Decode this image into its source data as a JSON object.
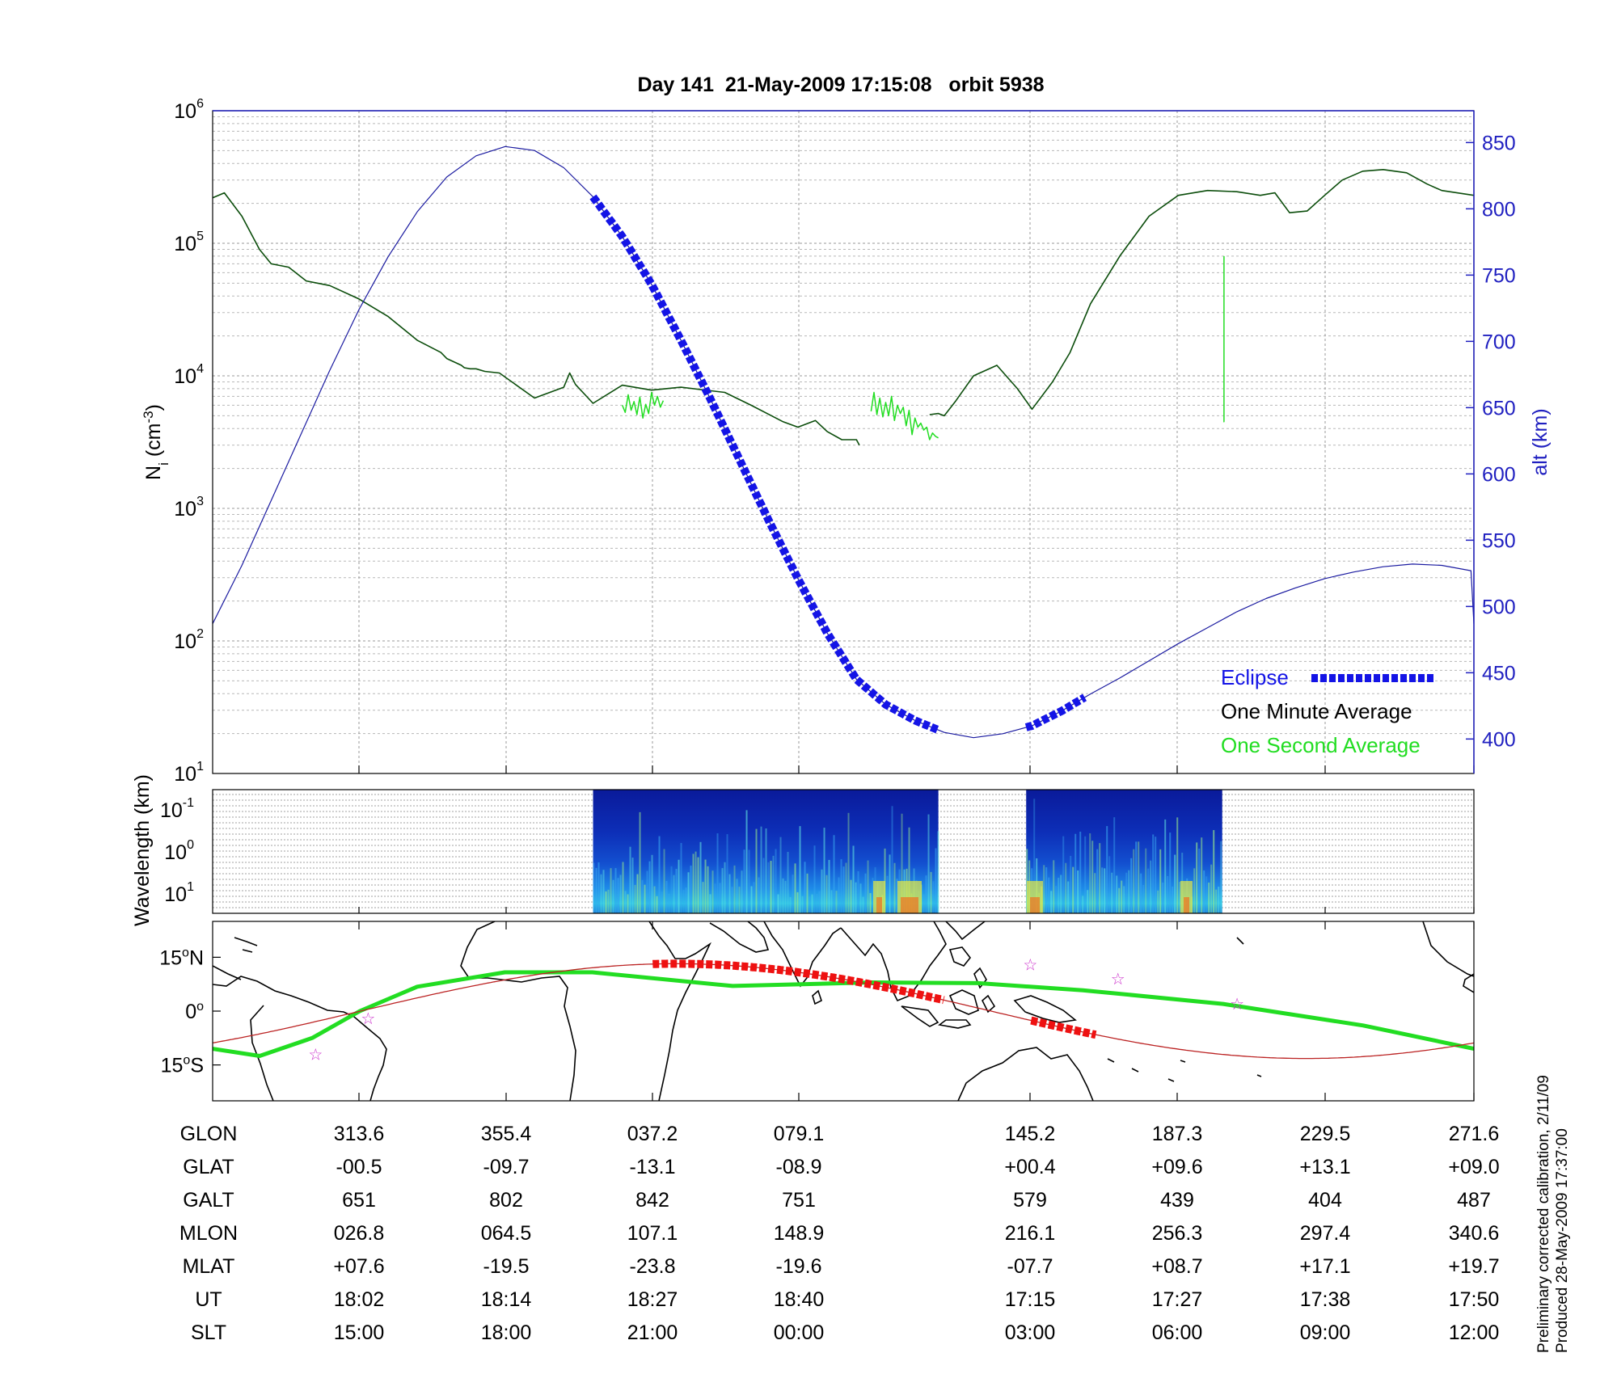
{
  "title": "Day 141  21-May-2009 17:15:08   orbit 5938",
  "colors": {
    "density_1s": "#22dd22",
    "density_1m": "#0b4d0b",
    "altitude": "#1a1aa0",
    "eclipse": "#1414e6",
    "track_eclipse": "#ee1111",
    "track_orbit": "#bb2222",
    "magnetic_equator": "#22dd22",
    "right_axis": "#2020c0",
    "star": "#cc33cc"
  },
  "chart_data": [
    {
      "type": "line",
      "ylabel": "N",
      "ylabel_sub": "i",
      "ylabel_unit_pre": " (cm",
      "ylabel_unit_sup": "-3",
      "ylabel_unit_post": ")",
      "y2label": "alt (km)",
      "yscale": "log",
      "ylim": [
        10,
        1000000
      ],
      "y2lim": [
        374,
        874
      ],
      "y_ticks": [
        {
          "base": "10",
          "exp": "1",
          "value": 10
        },
        {
          "base": "10",
          "exp": "2",
          "value": 100
        },
        {
          "base": "10",
          "exp": "3",
          "value": 1000
        },
        {
          "base": "10",
          "exp": "4",
          "value": 10000
        },
        {
          "base": "10",
          "exp": "5",
          "value": 100000
        },
        {
          "base": "10",
          "exp": "6",
          "value": 1000000
        }
      ],
      "y2_ticks": [
        "400",
        "450",
        "500",
        "550",
        "600",
        "650",
        "700",
        "750",
        "800",
        "850"
      ],
      "grid": true,
      "legend_position": "bottom-right",
      "legend": [
        {
          "label": "Eclipse",
          "color": "#1414e6"
        },
        {
          "label": "One Minute Average",
          "color": "#000000"
        },
        {
          "label": "One Second Average",
          "color": "#22dd22"
        }
      ],
      "series": [
        {
          "name": "One Minute Average",
          "axis": "left",
          "x": [
            0,
            4,
            10,
            16,
            20,
            26,
            32,
            40,
            50,
            60,
            70,
            78,
            80,
            85,
            86,
            88,
            90,
            93,
            98,
            110,
            120,
            122,
            124,
            130,
            140,
            150,
            160,
            175,
            184,
            195,
            200,
            206,
            210,
            215,
            220,
            221
          ],
          "y": [
            220000,
            240000,
            160000,
            90000,
            70000,
            66000,
            52000,
            48000,
            38000,
            28000,
            18500,
            15000,
            13500,
            12000,
            11500,
            11300,
            11300,
            10800,
            10500,
            6800,
            8200,
            10500,
            8600,
            6200,
            8500,
            7800,
            8200,
            7500,
            6000,
            4500,
            4100,
            4600,
            3800,
            3300,
            3300,
            3000
          ]
        },
        {
          "name": "One Minute Average",
          "axis": "left",
          "x": [
            245,
            248,
            250,
            254,
            260,
            268,
            275,
            280,
            287,
            293,
            300,
            310,
            320,
            330,
            340,
            350,
            358,
            363,
            368,
            374,
            380,
            386,
            393,
            400,
            408,
            415,
            420,
            431
          ],
          "y": [
            5100,
            5200,
            5000,
            6500,
            10000,
            12000,
            8000,
            5600,
            9000,
            15000,
            35000,
            80000,
            160000,
            230000,
            250000,
            245000,
            230000,
            240000,
            170000,
            175000,
            230000,
            300000,
            350000,
            360000,
            340000,
            280000,
            250000,
            230000
          ]
        },
        {
          "name": "One Second Average",
          "axis": "left",
          "x": [
            140,
            141,
            142,
            143,
            144,
            145,
            146,
            147,
            148,
            149,
            150,
            151,
            152,
            153,
            154
          ],
          "y": [
            6000,
            5300,
            7200,
            5500,
            6400,
            5100,
            6900,
            4800,
            6100,
            5200,
            7500,
            6000,
            7000,
            5800,
            6500
          ]
        },
        {
          "name": "One Second Average",
          "axis": "left",
          "x": [
            225,
            226,
            227,
            228,
            229,
            230,
            231,
            232,
            233,
            234,
            235,
            236,
            237,
            238,
            239,
            240,
            241,
            242,
            243,
            244,
            245,
            246,
            247,
            248
          ],
          "y": [
            5400,
            7500,
            5100,
            6800,
            4900,
            6300,
            5000,
            7000,
            4600,
            6000,
            5200,
            5800,
            4200,
            5500,
            3600,
            4800,
            4100,
            4400,
            3900,
            4100,
            3300,
            3700,
            3500,
            3400
          ]
        },
        {
          "name": "One Second Average",
          "axis": "left",
          "x": [
            345.6,
            345.6,
            345.7
          ],
          "y": [
            80000,
            4500,
            4500
          ]
        },
        {
          "name": "alt (km)",
          "axis": "right",
          "x": [
            0,
            10,
            20,
            30,
            40,
            50,
            60,
            70,
            80,
            90,
            100,
            110,
            120,
            130,
            140,
            150,
            160,
            170,
            180,
            190,
            200,
            210,
            220,
            230,
            240,
            250,
            260,
            270,
            280,
            290,
            300,
            310,
            320,
            330,
            340,
            350,
            360,
            370,
            380,
            390,
            400,
            410,
            420,
            430,
            431
          ],
          "y": [
            487,
            531,
            580,
            629,
            678,
            724,
            764,
            798,
            824,
            840,
            847,
            844,
            831,
            809,
            779,
            743,
            701,
            657,
            611,
            565,
            521,
            480,
            445,
            426,
            414,
            405,
            401,
            404,
            410,
            421,
            434,
            446,
            459,
            472,
            484,
            496,
            506,
            514,
            521,
            526,
            530,
            532,
            531,
            527,
            487
          ]
        }
      ],
      "eclipse_segments": [
        {
          "x_start": 130,
          "x_end": 248,
          "label": "Eclipse"
        },
        {
          "x_start": 278,
          "x_end": 298,
          "label": "Eclipse"
        }
      ]
    },
    {
      "type": "heatmap",
      "ylabel": "Wavelength (km)",
      "y_ticks": [
        {
          "base": "10",
          "exp": "-1"
        },
        {
          "base": "10",
          "exp": "0"
        },
        {
          "base": "10",
          "exp": "1"
        }
      ],
      "coverage": [
        {
          "x_start": 130,
          "x_end": 248
        },
        {
          "x_start": 278,
          "x_end": 345
        }
      ],
      "colormap": "jet"
    },
    {
      "type": "map",
      "y_ticks": [
        {
          "deg": "15",
          "hemi": "N",
          "lat": 15
        },
        {
          "deg": "0",
          "hemi": "",
          "lat": 0
        },
        {
          "deg": "15",
          "hemi": "S",
          "lat": -15
        }
      ],
      "ylim": [
        -25,
        25
      ],
      "satellite_track": {
        "lon": [
          271.6,
          313.6,
          355.4,
          37.2,
          79.1,
          121.2,
          145.2,
          187.3,
          229.5,
          271.6
        ],
        "lat": [
          9.0,
          -0.5,
          -9.7,
          -13.1,
          -8.9,
          -4.4,
          0.4,
          9.6,
          13.1,
          9.0
        ]
      },
      "magnetic_equator": {
        "lon": [
          271.6,
          285,
          300,
          313.6,
          330,
          355,
          20,
          60,
          100,
          130,
          160,
          200,
          240,
          271.6
        ],
        "lat": [
          -10.5,
          -12.5,
          -7.5,
          0.0,
          6.8,
          10.8,
          10.8,
          7.0,
          8.0,
          7.8,
          5.8,
          2.0,
          -4.0,
          -10.5
        ]
      },
      "eclipse_track": [
        {
          "lon_start": 37.2,
          "lon_end": 120.6
        },
        {
          "lon_start": 145.2,
          "lon_end": 163.8
        }
      ],
      "stars": [
        {
          "lon": 301,
          "lat": -12
        },
        {
          "lon": 316,
          "lat": -2
        },
        {
          "lon": 145,
          "lat": 13
        },
        {
          "lon": 170,
          "lat": 9
        },
        {
          "lon": 204,
          "lat": 2
        }
      ]
    }
  ],
  "table": {
    "columns": [
      "313.6",
      "355.4",
      "037.2",
      "079.1",
      "145.2",
      "187.3",
      "229.5",
      "271.6"
    ],
    "rows": [
      {
        "label": "GLON",
        "values": [
          "313.6",
          "355.4",
          "037.2",
          "079.1",
          "145.2",
          "187.3",
          "229.5",
          "271.6"
        ]
      },
      {
        "label": "GLAT",
        "values": [
          "-00.5",
          "-09.7",
          "-13.1",
          "-08.9",
          "+00.4",
          "+09.6",
          "+13.1",
          "+09.0"
        ]
      },
      {
        "label": "GALT",
        "values": [
          "651",
          "802",
          "842",
          "751",
          "579",
          "439",
          "404",
          "487"
        ]
      },
      {
        "label": "MLON",
        "values": [
          "026.8",
          "064.5",
          "107.1",
          "148.9",
          "216.1",
          "256.3",
          "297.4",
          "340.6"
        ]
      },
      {
        "label": "MLAT",
        "values": [
          "+07.6",
          "-19.5",
          "-23.8",
          "-19.6",
          "-07.7",
          "+08.7",
          "+17.1",
          "+19.7"
        ]
      },
      {
        "label": "UT",
        "values": [
          "18:02",
          "18:14",
          "18:27",
          "18:40",
          "17:15",
          "17:27",
          "17:38",
          "17:50"
        ]
      },
      {
        "label": "SLT",
        "values": [
          "15:00",
          "18:00",
          "21:00",
          "00:00",
          "03:00",
          "06:00",
          "09:00",
          "12:00"
        ]
      }
    ]
  },
  "footnote": {
    "line1": "Preliminary corrected calibration, 2/11/09",
    "line2": "Produced 28-May-2009 17:37:00"
  }
}
